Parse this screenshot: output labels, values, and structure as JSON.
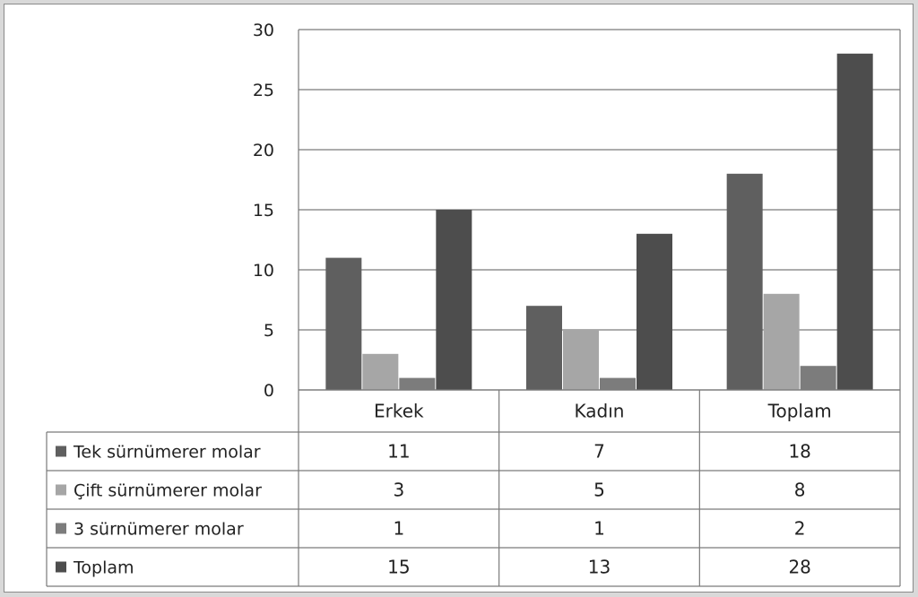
{
  "chart_data": {
    "type": "bar",
    "title": "",
    "xlabel": "",
    "ylabel": "",
    "ylim": [
      0,
      30
    ],
    "yticks": [
      0,
      5,
      10,
      15,
      20,
      25,
      30
    ],
    "grid": true,
    "legend": "data-table",
    "categories": [
      "Erkek",
      "Kadın",
      "Toplam"
    ],
    "series": [
      {
        "name": "Tek sürnümerer molar",
        "values": [
          11,
          7,
          18
        ],
        "color": "#5f5f5f"
      },
      {
        "name": "Çift sürnümerer molar",
        "values": [
          3,
          5,
          8
        ],
        "color": "#a6a6a6"
      },
      {
        "name": "3 sürnümerer molar",
        "values": [
          1,
          1,
          2
        ],
        "color": "#7c7c7c"
      },
      {
        "name": "Toplam",
        "values": [
          15,
          13,
          28
        ],
        "color": "#4d4d4d"
      }
    ]
  }
}
